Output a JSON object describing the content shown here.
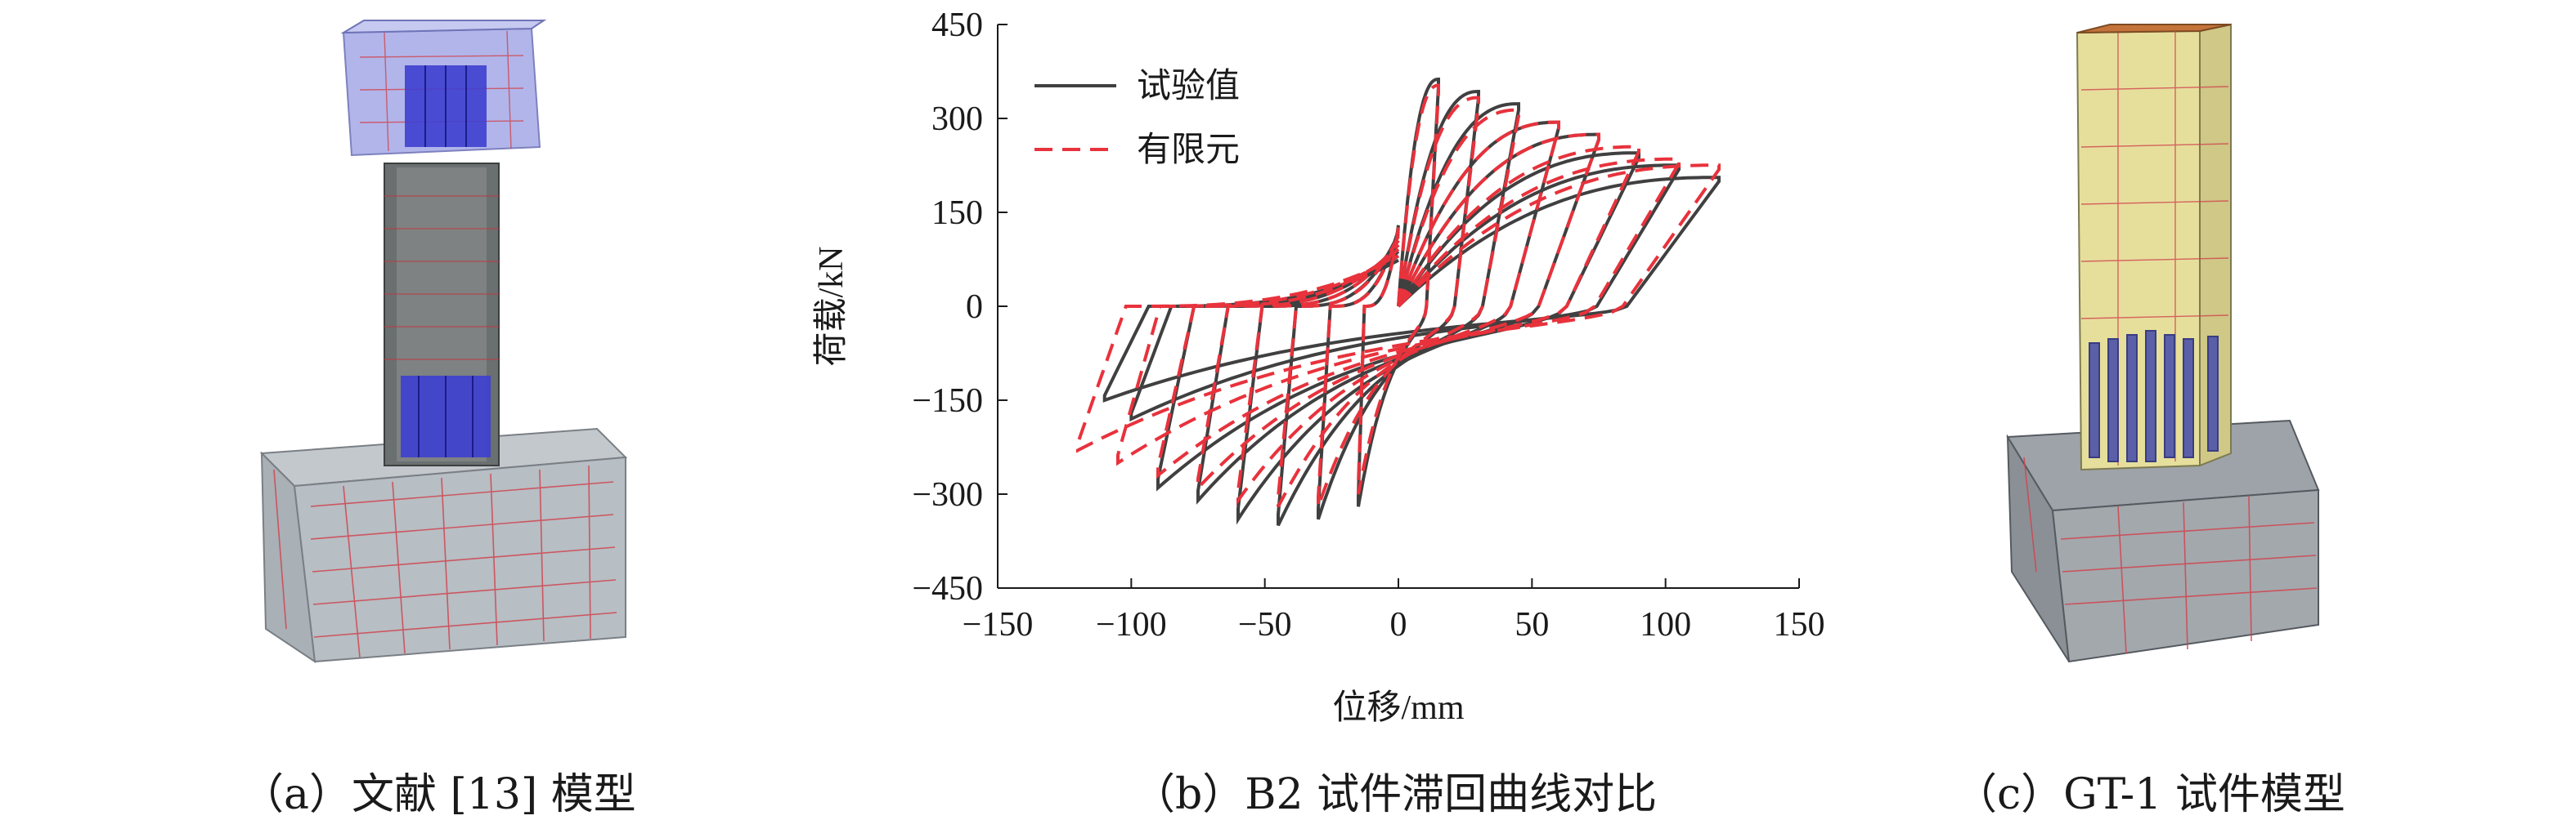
{
  "captions": {
    "a": "（a）文献 [13] 模型",
    "b": "（b）B2 试件滞回曲线对比",
    "c": "（c）GT-1 试件模型"
  },
  "chart_data": {
    "type": "line",
    "title": "",
    "xlabel": "位移/mm",
    "ylabel": "荷载/kN",
    "xlim": [
      -150,
      150
    ],
    "ylim": [
      -450,
      450
    ],
    "xticks": [
      -150,
      -100,
      -50,
      0,
      50,
      100,
      150
    ],
    "yticks": [
      -450,
      -300,
      -150,
      0,
      150,
      300,
      450
    ],
    "xtick_labels": [
      "−150",
      "−100",
      "−50",
      "0",
      "50",
      "100",
      "150"
    ],
    "ytick_labels": [
      "−450",
      "−300",
      "−150",
      "0",
      "150",
      "300",
      "450"
    ],
    "legend_position": "top-left",
    "grid": false,
    "series": [
      {
        "name": "试验值",
        "style": "solid",
        "color": "#404040",
        "loops": [
          {
            "amp_pos": 15,
            "peak_pos": 370,
            "amp_neg": -15,
            "peak_neg": -320
          },
          {
            "amp_pos": 30,
            "peak_pos": 350,
            "amp_neg": -30,
            "peak_neg": -340
          },
          {
            "amp_pos": 45,
            "peak_pos": 330,
            "amp_neg": -45,
            "peak_neg": -350
          },
          {
            "amp_pos": 60,
            "peak_pos": 300,
            "amp_neg": -60,
            "peak_neg": -340
          },
          {
            "amp_pos": 75,
            "peak_pos": 280,
            "amp_neg": -75,
            "peak_neg": -310
          },
          {
            "amp_pos": 90,
            "peak_pos": 250,
            "amp_neg": -90,
            "peak_neg": -290
          },
          {
            "amp_pos": 105,
            "peak_pos": 230,
            "amp_neg": -100,
            "peak_neg": -180
          },
          {
            "amp_pos": 120,
            "peak_pos": 210,
            "amp_neg": -110,
            "peak_neg": -150
          }
        ]
      },
      {
        "name": "有限元",
        "style": "dashed",
        "color": "#e8323c",
        "loops": [
          {
            "amp_pos": 15,
            "peak_pos": 360,
            "amp_neg": -15,
            "peak_neg": -300
          },
          {
            "amp_pos": 30,
            "peak_pos": 340,
            "amp_neg": -30,
            "peak_neg": -320
          },
          {
            "amp_pos": 45,
            "peak_pos": 320,
            "amp_neg": -45,
            "peak_neg": -320
          },
          {
            "amp_pos": 60,
            "peak_pos": 300,
            "amp_neg": -60,
            "peak_neg": -310
          },
          {
            "amp_pos": 75,
            "peak_pos": 280,
            "amp_neg": -75,
            "peak_neg": -290
          },
          {
            "amp_pos": 90,
            "peak_pos": 260,
            "amp_neg": -90,
            "peak_neg": -270
          },
          {
            "amp_pos": 105,
            "peak_pos": 240,
            "amp_neg": -105,
            "peak_neg": -250
          },
          {
            "amp_pos": 120,
            "peak_pos": 230,
            "amp_neg": -120,
            "peak_neg": -230
          }
        ]
      }
    ]
  }
}
